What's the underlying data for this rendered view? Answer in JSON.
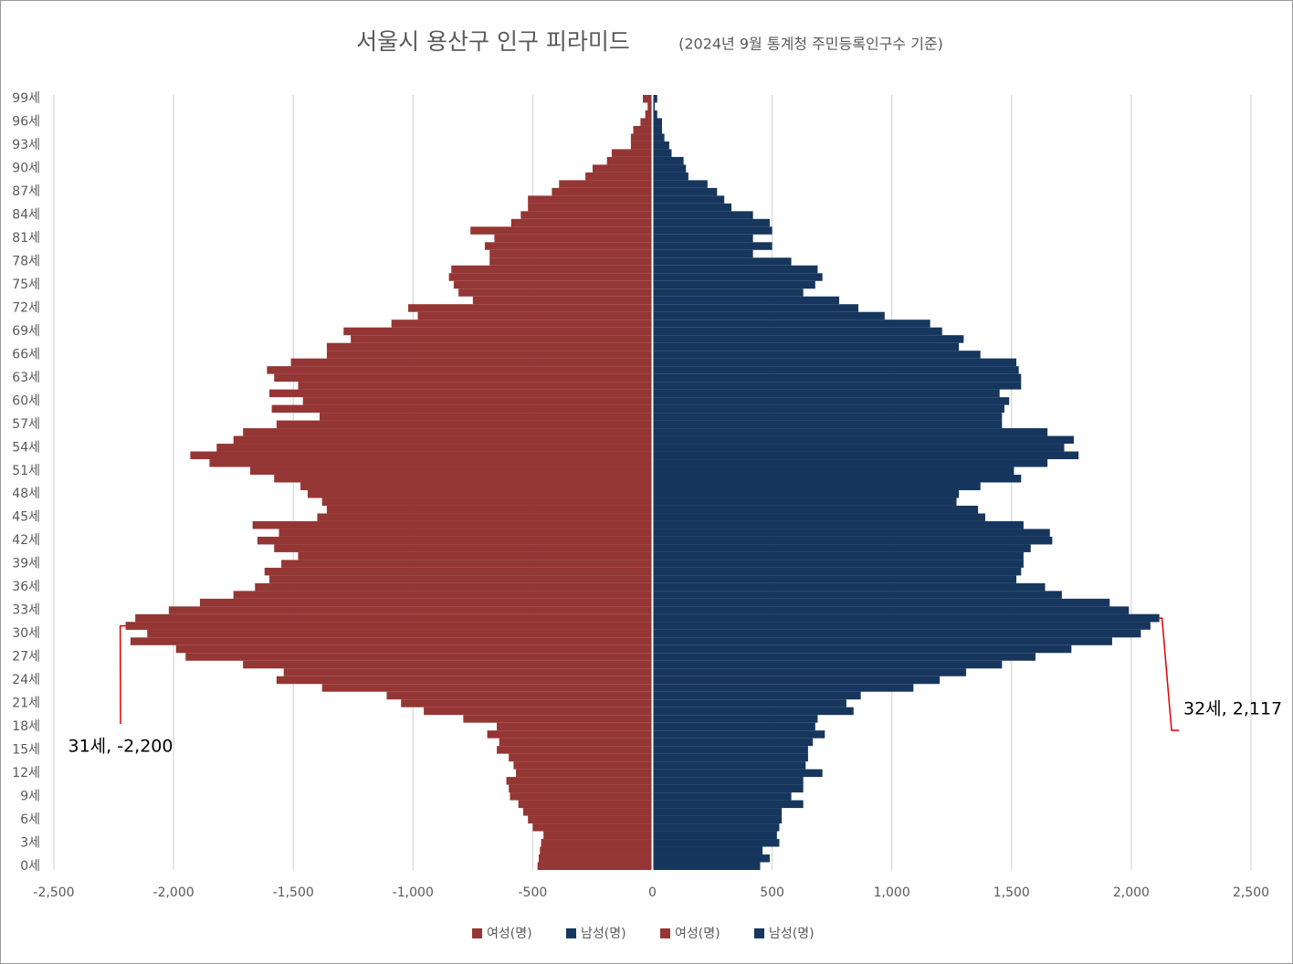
{
  "chart_data": {
    "type": "pyramid",
    "title": "서울시 용산구 인구 피라미드",
    "subtitle": "(2024년 9월 통계청 주민등록인구수 기준)",
    "categories": [
      "0세",
      null,
      null,
      "3세",
      null,
      null,
      "6세",
      null,
      null,
      "9세",
      null,
      null,
      "12세",
      null,
      null,
      "15세",
      null,
      null,
      "18세",
      null,
      null,
      "21세",
      null,
      null,
      "24세",
      null,
      null,
      "27세",
      null,
      null,
      "30세",
      null,
      null,
      "33세",
      null,
      null,
      "36세",
      null,
      null,
      "39세",
      null,
      null,
      "42세",
      null,
      null,
      "45세",
      null,
      null,
      "48세",
      null,
      null,
      "51세",
      null,
      null,
      "54세",
      null,
      null,
      "57세",
      null,
      null,
      "60세",
      null,
      null,
      "63세",
      null,
      null,
      "66세",
      null,
      null,
      "69세",
      null,
      null,
      "72세",
      null,
      null,
      "75세",
      null,
      null,
      "78세",
      null,
      null,
      "81세",
      null,
      null,
      "84세",
      null,
      null,
      "87세",
      null,
      null,
      "90세",
      null,
      null,
      "93세",
      null,
      null,
      "96세",
      null,
      null,
      "99세"
    ],
    "series": [
      {
        "name": "여성(명)",
        "color": "#943634",
        "values": [
          -480,
          -475,
          -470,
          -465,
          -455,
          -500,
          -520,
          -540,
          -560,
          -595,
          -600,
          -610,
          -570,
          -580,
          -600,
          -650,
          -640,
          -690,
          -650,
          -790,
          -955,
          -1050,
          -1110,
          -1380,
          -1570,
          -1540,
          -1710,
          -1950,
          -1990,
          -2180,
          -2110,
          -2200,
          -2160,
          -2020,
          -1890,
          -1750,
          -1660,
          -1600,
          -1620,
          -1550,
          -1480,
          -1580,
          -1650,
          -1560,
          -1670,
          -1400,
          -1360,
          -1380,
          -1440,
          -1470,
          -1580,
          -1680,
          -1850,
          -1930,
          -1820,
          -1750,
          -1710,
          -1570,
          -1390,
          -1590,
          -1460,
          -1600,
          -1480,
          -1580,
          -1610,
          -1510,
          -1360,
          -1360,
          -1260,
          -1290,
          -1090,
          -980,
          -1020,
          -750,
          -810,
          -830,
          -850,
          -840,
          -680,
          -680,
          -700,
          -660,
          -760,
          -590,
          -550,
          -520,
          -520,
          -420,
          -390,
          -280,
          -250,
          -190,
          -170,
          -90,
          -90,
          -80,
          -50,
          -30,
          -20,
          -40
        ]
      },
      {
        "name": "남성(명)",
        "color": "#17365d",
        "values": [
          450,
          490,
          460,
          530,
          520,
          530,
          540,
          540,
          630,
          580,
          630,
          630,
          710,
          640,
          650,
          650,
          670,
          720,
          680,
          690,
          840,
          810,
          870,
          1090,
          1200,
          1310,
          1460,
          1600,
          1750,
          1920,
          2040,
          2080,
          2117,
          1990,
          1910,
          1710,
          1640,
          1520,
          1540,
          1550,
          1550,
          1580,
          1670,
          1660,
          1550,
          1390,
          1360,
          1270,
          1280,
          1370,
          1540,
          1510,
          1650,
          1780,
          1720,
          1760,
          1650,
          1460,
          1460,
          1470,
          1490,
          1450,
          1540,
          1540,
          1530,
          1520,
          1370,
          1280,
          1300,
          1210,
          1160,
          970,
          860,
          780,
          630,
          680,
          710,
          690,
          580,
          420,
          500,
          420,
          500,
          490,
          420,
          330,
          300,
          270,
          230,
          150,
          140,
          130,
          80,
          70,
          50,
          40,
          40,
          20,
          10,
          20
        ]
      },
      {
        "name": "여성(명)",
        "color": "#943634",
        "values": [
          null,
          null,
          null,
          null,
          null,
          null,
          null,
          null,
          null,
          null,
          null,
          null,
          null,
          null,
          null,
          null,
          null,
          null,
          null,
          null,
          null,
          null,
          null,
          null,
          null,
          null,
          null,
          null,
          null,
          null,
          null,
          -2200,
          null,
          null,
          null,
          null,
          null,
          null,
          null,
          null,
          null,
          null,
          null,
          null,
          null,
          null,
          null,
          null,
          null,
          null,
          null,
          null,
          null,
          null,
          null,
          null,
          null,
          null,
          null,
          null,
          null,
          null,
          null,
          null,
          null,
          null,
          null,
          null,
          null,
          null,
          null,
          null,
          null,
          null,
          null,
          null,
          null,
          null,
          null,
          null,
          null,
          null,
          null,
          null,
          null,
          null,
          null,
          null,
          null,
          null,
          null,
          null,
          null,
          null,
          null,
          null,
          null,
          null,
          null,
          null
        ]
      },
      {
        "name": "남성(명)",
        "color": "#17365d",
        "values": [
          null,
          null,
          null,
          null,
          null,
          null,
          null,
          null,
          null,
          null,
          null,
          null,
          null,
          null,
          null,
          null,
          null,
          null,
          null,
          null,
          null,
          null,
          null,
          null,
          null,
          null,
          null,
          null,
          null,
          null,
          null,
          null,
          2117,
          null,
          null,
          null,
          null,
          null,
          null,
          null,
          null,
          null,
          null,
          null,
          null,
          null,
          null,
          null,
          null,
          null,
          null,
          null,
          null,
          null,
          null,
          null,
          null,
          null,
          null,
          null,
          null,
          null,
          null,
          null,
          null,
          null,
          null,
          null,
          null,
          null,
          null,
          null,
          null,
          null,
          null,
          null,
          null,
          null,
          null,
          null,
          null,
          null,
          null,
          null,
          null,
          null,
          null,
          null,
          null,
          null,
          null,
          null,
          null,
          null,
          null,
          null,
          null,
          null,
          null,
          null
        ]
      }
    ],
    "annotations": [
      {
        "text": "31세, -2,200",
        "series": 2,
        "index": 31
      },
      {
        "text": "32세, 2,117",
        "series": 3,
        "index": 32
      }
    ],
    "xlim": [
      -2500,
      2500
    ],
    "xticks": [
      {
        "value": -2500,
        "label": "-2,500"
      },
      {
        "value": -2000,
        "label": "-2,000"
      },
      {
        "value": -1500,
        "label": "-1,500"
      },
      {
        "value": -1000,
        "label": "-1,000"
      },
      -500,
      0,
      500,
      {
        "value": 1000,
        "label": "1,000"
      },
      {
        "value": 1500,
        "label": "1,500"
      },
      {
        "value": 2000,
        "label": "2,000"
      },
      {
        "value": 2500,
        "label": "2,500"
      }
    ],
    "grid": true,
    "legend": "bottom"
  }
}
